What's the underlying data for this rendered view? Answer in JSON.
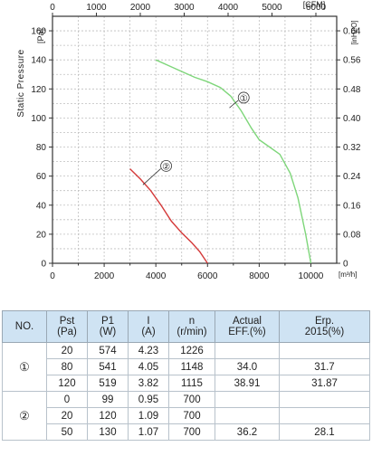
{
  "chart_data": {
    "type": "line",
    "ylabel": "Static Pressure",
    "y_left_unit": "[Pa]",
    "y_right_unit": "[inH2O]",
    "x_top_unit": "[CFM]",
    "x_bottom_unit": "[m³/h]",
    "x_bottom_ticks": [
      "0",
      "2000",
      "4000",
      "6000",
      "8000",
      "10000"
    ],
    "x_top_ticks": [
      "0",
      "1000",
      "2000",
      "3000",
      "4000",
      "5000",
      "6000"
    ],
    "y_left_ticks": [
      "0",
      "20",
      "40",
      "60",
      "80",
      "100",
      "120",
      "140",
      "160"
    ],
    "y_right_ticks": [
      "0",
      "0.08",
      "0.16",
      "0.24",
      "0.32",
      "0.40",
      "0.48",
      "0.56",
      "0.64"
    ],
    "xlim": [
      0,
      11000
    ],
    "ylim": [
      0,
      170
    ],
    "grid": true,
    "series": [
      {
        "name": "①",
        "color": "#7ed67a",
        "x": [
          4000,
          4500,
          5000,
          5500,
          6000,
          6500,
          6900,
          7300,
          7700,
          8000,
          8400,
          8800,
          9200,
          9500,
          9800,
          10000
        ],
        "y": [
          140,
          136,
          132,
          128,
          125,
          121,
          115,
          105,
          93,
          85,
          80,
          75,
          62,
          45,
          20,
          0
        ]
      },
      {
        "name": "②",
        "color": "#d43a3a",
        "x": [
          3000,
          3400,
          3800,
          4200,
          4600,
          5000,
          5400,
          5700,
          6000
        ],
        "y": [
          65,
          58,
          50,
          40,
          29,
          21,
          14,
          8,
          0
        ]
      }
    ],
    "callouts": [
      {
        "label": "①",
        "x": 7400,
        "y": 114,
        "tip_x": 6850,
        "tip_y": 107
      },
      {
        "label": "②",
        "x": 4400,
        "y": 67,
        "tip_x": 3500,
        "tip_y": 54
      }
    ]
  },
  "table": {
    "headers": {
      "no": "NO.",
      "pst": [
        "Pst",
        "(Pa)"
      ],
      "p1": [
        "P1",
        "(W)"
      ],
      "i": [
        "I",
        "(A)"
      ],
      "n": [
        "n",
        "(r/min)"
      ],
      "eff": [
        "Actual",
        "EFF.(%)"
      ],
      "erp": [
        "Erp.",
        "2015(%)"
      ]
    },
    "groups": [
      {
        "label": "①",
        "rows": [
          {
            "pst": "20",
            "p1": "574",
            "i": "4.23",
            "n": "1226",
            "eff": "",
            "erp": ""
          },
          {
            "pst": "80",
            "p1": "541",
            "i": "4.05",
            "n": "1148",
            "eff": "34.0",
            "erp": "31.7"
          },
          {
            "pst": "120",
            "p1": "519",
            "i": "3.82",
            "n": "1115",
            "eff": "38.91",
            "erp": "31.87"
          }
        ]
      },
      {
        "label": "②",
        "rows": [
          {
            "pst": "0",
            "p1": "99",
            "i": "0.95",
            "n": "700",
            "eff": "",
            "erp": ""
          },
          {
            "pst": "20",
            "p1": "120",
            "i": "1.09",
            "n": "700",
            "eff": "",
            "erp": ""
          },
          {
            "pst": "50",
            "p1": "130",
            "i": "1.07",
            "n": "700",
            "eff": "36.2",
            "erp": "28.1"
          }
        ]
      }
    ]
  }
}
